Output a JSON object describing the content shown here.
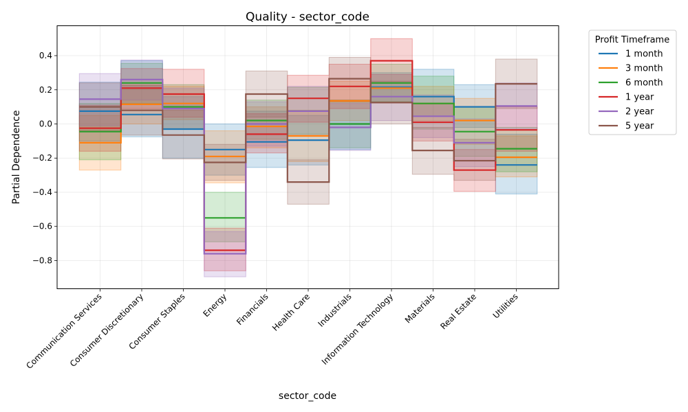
{
  "chart_data": {
    "type": "line",
    "title": "Quality - sector_code",
    "xlabel": "sector_code",
    "ylabel": "Partial Dependence",
    "ylim": [
      -0.965,
      0.575
    ],
    "yticks": [
      -0.8,
      -0.6,
      -0.4,
      -0.2,
      0.0,
      0.2,
      0.4
    ],
    "ytick_labels": [
      "−0.8",
      "−0.6",
      "−0.4",
      "−0.2",
      "0.0",
      "0.2",
      "0.4"
    ],
    "grid": true,
    "legend_title": "Profit Timeframe",
    "legend_position": "outside-top-right",
    "categories": [
      "Communication Services",
      "Consumer Discretionary",
      "Consumer Staples",
      "Energy",
      "Financials",
      "Health Care",
      "Industrials",
      "Information Technology",
      "Materials",
      "Real Estate",
      "Utilities"
    ],
    "series": [
      {
        "name": "1 month",
        "color": "#1f77b4",
        "values": [
          0.075,
          0.055,
          -0.03,
          -0.15,
          -0.105,
          -0.095,
          0.0,
          0.215,
          0.16,
          0.1,
          -0.24
        ],
        "lower": [
          -0.1,
          -0.075,
          -0.2,
          -0.3,
          -0.255,
          -0.24,
          -0.15,
          0.13,
          0.045,
          -0.02,
          -0.41
        ],
        "upper": [
          0.245,
          0.37,
          0.16,
          0.0,
          0.075,
          0.05,
          0.14,
          0.3,
          0.32,
          0.23,
          -0.06
        ]
      },
      {
        "name": "3 month",
        "color": "#ff7f0e",
        "values": [
          -0.11,
          0.115,
          0.12,
          -0.19,
          -0.015,
          -0.07,
          0.135,
          0.21,
          0.12,
          0.02,
          -0.195
        ],
        "lower": [
          -0.27,
          0.0,
          0.025,
          -0.345,
          -0.14,
          -0.22,
          0.02,
          0.13,
          0.02,
          -0.12,
          -0.31
        ],
        "upper": [
          0.05,
          0.23,
          0.22,
          -0.04,
          0.1,
          0.08,
          0.25,
          0.29,
          0.22,
          0.15,
          -0.07
        ]
      },
      {
        "name": "6 month",
        "color": "#2ca02c",
        "values": [
          -0.045,
          0.24,
          0.1,
          -0.55,
          0.02,
          0.075,
          0.0,
          0.24,
          0.12,
          -0.045,
          -0.145
        ],
        "lower": [
          -0.21,
          0.12,
          -0.03,
          -0.69,
          -0.09,
          -0.06,
          -0.14,
          0.13,
          -0.03,
          -0.19,
          -0.28
        ],
        "upper": [
          0.12,
          0.355,
          0.23,
          -0.4,
          0.14,
          0.215,
          0.14,
          0.35,
          0.28,
          0.1,
          -0.02
        ]
      },
      {
        "name": "1 year",
        "color": "#d62728",
        "values": [
          -0.025,
          0.21,
          0.175,
          -0.74,
          -0.06,
          0.15,
          0.22,
          0.37,
          0.01,
          -0.27,
          -0.035
        ],
        "lower": [
          -0.16,
          0.09,
          0.04,
          -0.86,
          -0.17,
          0.01,
          0.09,
          0.24,
          -0.1,
          -0.395,
          -0.16
        ],
        "upper": [
          0.11,
          0.325,
          0.32,
          -0.61,
          0.06,
          0.285,
          0.35,
          0.5,
          0.12,
          -0.15,
          0.1
        ]
      },
      {
        "name": "2 year",
        "color": "#9467bd",
        "values": [
          0.145,
          0.26,
          0.09,
          -0.76,
          0.0,
          0.075,
          -0.02,
          0.16,
          0.045,
          -0.11,
          0.105
        ],
        "lower": [
          -0.01,
          0.14,
          -0.03,
          -0.895,
          -0.13,
          -0.07,
          -0.155,
          0.02,
          -0.08,
          -0.25,
          -0.03
        ],
        "upper": [
          0.295,
          0.375,
          0.21,
          -0.63,
          0.13,
          0.22,
          0.12,
          0.29,
          0.17,
          0.03,
          0.24
        ]
      },
      {
        "name": "5 year",
        "color": "#8c564b",
        "values": [
          0.1,
          0.08,
          -0.065,
          -0.225,
          0.175,
          -0.34,
          0.265,
          0.125,
          -0.155,
          -0.215,
          0.235
        ],
        "lower": [
          -0.04,
          -0.065,
          -0.205,
          -0.33,
          0.04,
          -0.47,
          0.13,
          0.0,
          -0.295,
          -0.33,
          0.09
        ],
        "upper": [
          0.24,
          0.225,
          0.08,
          -0.12,
          0.31,
          -0.21,
          0.39,
          0.25,
          -0.02,
          -0.09,
          0.38
        ]
      }
    ]
  }
}
